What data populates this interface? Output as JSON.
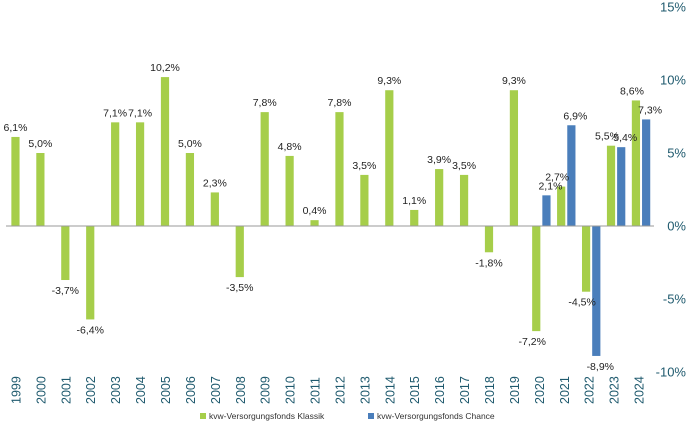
{
  "chart_data": {
    "type": "bar",
    "categories": [
      "1999",
      "2000",
      "2001",
      "2002",
      "2003",
      "2004",
      "2005",
      "2006",
      "2007",
      "2008",
      "2009",
      "2010",
      "2011",
      "2012",
      "2013",
      "2014",
      "2015",
      "2016",
      "2017",
      "2018",
      "2019",
      "2020",
      "2021",
      "2022",
      "2023",
      "2024"
    ],
    "series": [
      {
        "name": "kvw-Versorgungsfonds Klassik",
        "color": "#a6ce4a",
        "values": [
          6.1,
          5.0,
          -3.7,
          -6.4,
          7.1,
          7.1,
          10.2,
          5.0,
          2.3,
          -3.5,
          7.8,
          4.8,
          0.4,
          7.8,
          3.5,
          9.3,
          1.1,
          3.9,
          3.5,
          -1.8,
          9.3,
          -7.2,
          2.7,
          -4.5,
          5.5,
          8.6
        ],
        "labels": [
          "6,1%",
          "5,0%",
          "-3,7%",
          "-6,4%",
          "7,1%",
          "7,1%",
          "10,2%",
          "5,0%",
          "2,3%",
          "-3,5%",
          "7,8%",
          "4,8%",
          "0,4%",
          "7,8%",
          "3,5%",
          "9,3%",
          "1,1%",
          "3,9%",
          "3,5%",
          "-1,8%",
          "9,3%",
          "-7,2%",
          "2,7%",
          "-4,5%",
          "5,5%",
          "8,6%"
        ]
      },
      {
        "name": "kvw-Versorgungsfonds Chance",
        "color": "#4a7ebb",
        "values": [
          null,
          null,
          null,
          null,
          null,
          null,
          null,
          null,
          null,
          null,
          null,
          null,
          null,
          null,
          null,
          null,
          null,
          null,
          null,
          null,
          null,
          2.1,
          6.9,
          -8.9,
          5.4,
          7.3
        ],
        "labels": [
          "",
          "",
          "",
          "",
          "",
          "",
          "",
          "",
          "",
          "",
          "",
          "",
          "",
          "",
          "",
          "",
          "",
          "",
          "",
          "",
          "",
          "2,1%",
          "6,9%",
          "-8,9%",
          "5,4%",
          "7,3%"
        ]
      }
    ],
    "ylim": [
      -10,
      15
    ],
    "yticks": [
      -10,
      -5,
      0,
      5,
      10,
      15
    ],
    "ytick_labels": [
      "-10%",
      "-5%",
      "0%",
      "5%",
      "10%",
      "15%"
    ],
    "y_axis_side": "right",
    "grid": false,
    "legend_position": "bottom",
    "title": "",
    "xlabel": "",
    "ylabel": ""
  }
}
